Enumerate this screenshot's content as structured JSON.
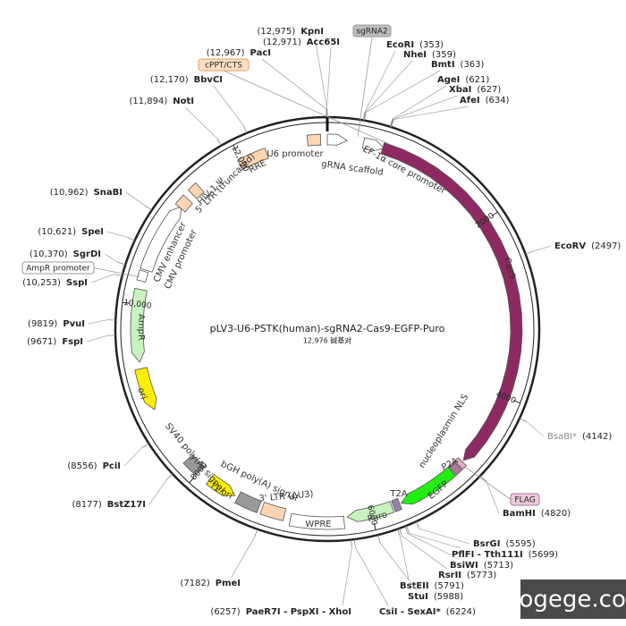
{
  "title": "pLV3-U6-PSTK(human)-sgRNA2-Cas9-EGFP-Puro",
  "length": {
    "value": 12976,
    "label": "12,976 碱基对"
  },
  "scale_ticks": [
    2000,
    4000,
    6000,
    8000,
    {
      "value": 10000,
      "label": "10,000"
    },
    {
      "value": 12000,
      "label": "12,000"
    }
  ],
  "sites": [
    {
      "name": "KpnI",
      "position": {
        "value": 12975,
        "label": "(12,975)"
      }
    },
    {
      "name": "Acc65I",
      "position": {
        "value": 12971,
        "label": "(12,971)"
      }
    },
    {
      "name": "PacI",
      "position": {
        "value": 12967,
        "label": "(12,967)"
      }
    },
    {
      "name": "BbvCI",
      "position": {
        "value": 12170,
        "label": "(12,170)"
      }
    },
    {
      "name": "NotI",
      "position": {
        "value": 11894,
        "label": "(11,894)"
      }
    },
    {
      "name": "SnaBI",
      "position": {
        "value": 10962,
        "label": "(10,962)"
      }
    },
    {
      "name": "SpeI",
      "position": {
        "value": 10621,
        "label": "(10,621)"
      }
    },
    {
      "name": "SgrDI",
      "position": {
        "value": 10370,
        "label": "(10,370)"
      }
    },
    {
      "name": "SspI",
      "position": {
        "value": 10253,
        "label": "(10,253)"
      }
    },
    {
      "name": "PvuI",
      "position": {
        "value": 9819,
        "label": "(9819)"
      }
    },
    {
      "name": "FspI",
      "position": {
        "value": 9671,
        "label": "(9671)"
      }
    },
    {
      "name": "PciI",
      "position": {
        "value": 8556,
        "label": "(8556)"
      }
    },
    {
      "name": "BstZ17I",
      "position": {
        "value": 8177,
        "label": "(8177)"
      }
    },
    {
      "name": "PmeI",
      "position": {
        "value": 7182,
        "label": "(7182)"
      }
    },
    {
      "name": "PaeR7I - PspXI - XhoI",
      "position": {
        "value": 6257,
        "label": "(6257)"
      }
    },
    {
      "name": "EcoRI",
      "position": {
        "value": 353,
        "label": "(353)"
      }
    },
    {
      "name": "NheI",
      "position": {
        "value": 359,
        "label": "(359)"
      }
    },
    {
      "name": "BmtI",
      "position": {
        "value": 363,
        "label": "(363)"
      }
    },
    {
      "name": "AgeI",
      "position": {
        "value": 621,
        "label": "(621)"
      }
    },
    {
      "name": "XbaI",
      "position": {
        "value": 627,
        "label": "(627)"
      }
    },
    {
      "name": "AfeI",
      "position": {
        "value": 634,
        "label": "(634)"
      }
    },
    {
      "name": "EcoRV",
      "position": {
        "value": 2497,
        "label": "(2497)"
      }
    },
    {
      "name": "BsaBI*",
      "color": "#888888",
      "position": {
        "value": 4142,
        "label": "(4142)"
      }
    },
    {
      "name": "BamHI",
      "position": {
        "value": 4820,
        "label": "(4820)"
      }
    },
    {
      "name": "BsrGI",
      "position": {
        "value": 5595,
        "label": "(5595)"
      }
    },
    {
      "name": "PflFI - Tth111I",
      "position": {
        "value": 5699,
        "label": "(5699)"
      }
    },
    {
      "name": "BsiWI",
      "position": {
        "value": 5713,
        "label": "(5713)"
      }
    },
    {
      "name": "RsrII",
      "position": {
        "value": 5773,
        "label": "(5773)"
      }
    },
    {
      "name": "BstEII",
      "position": {
        "value": 5791,
        "label": "(5791)"
      }
    },
    {
      "name": "StuI",
      "position": {
        "value": 5988,
        "label": "(5988)"
      }
    },
    {
      "name": "CsiI - SexAI*",
      "position": {
        "value": 6224,
        "label": "(6224)"
      }
    }
  ],
  "features": [
    "U6 promoter",
    "gRNA scaffold",
    "EF-1α core promoter",
    "Cas9",
    "nucleoplasmin NLS",
    "P2A",
    "EGFP",
    "T2A",
    "Puro",
    "WPRE",
    "3' LTR (ΔU3)",
    "bGH poly(A) signal",
    "f1 ori",
    "SV40 poly(A) signal",
    "ori",
    "AmpR",
    "CMV enhancer",
    "CMV promoter",
    "5' LTR (truncated)",
    "HIV-1 Ψ",
    "RRE"
  ],
  "tags": [
    "sgRNA2",
    "cPPT/CTS",
    "AmpR promoter",
    "FLAG"
  ],
  "watermark": "blogege.com"
}
